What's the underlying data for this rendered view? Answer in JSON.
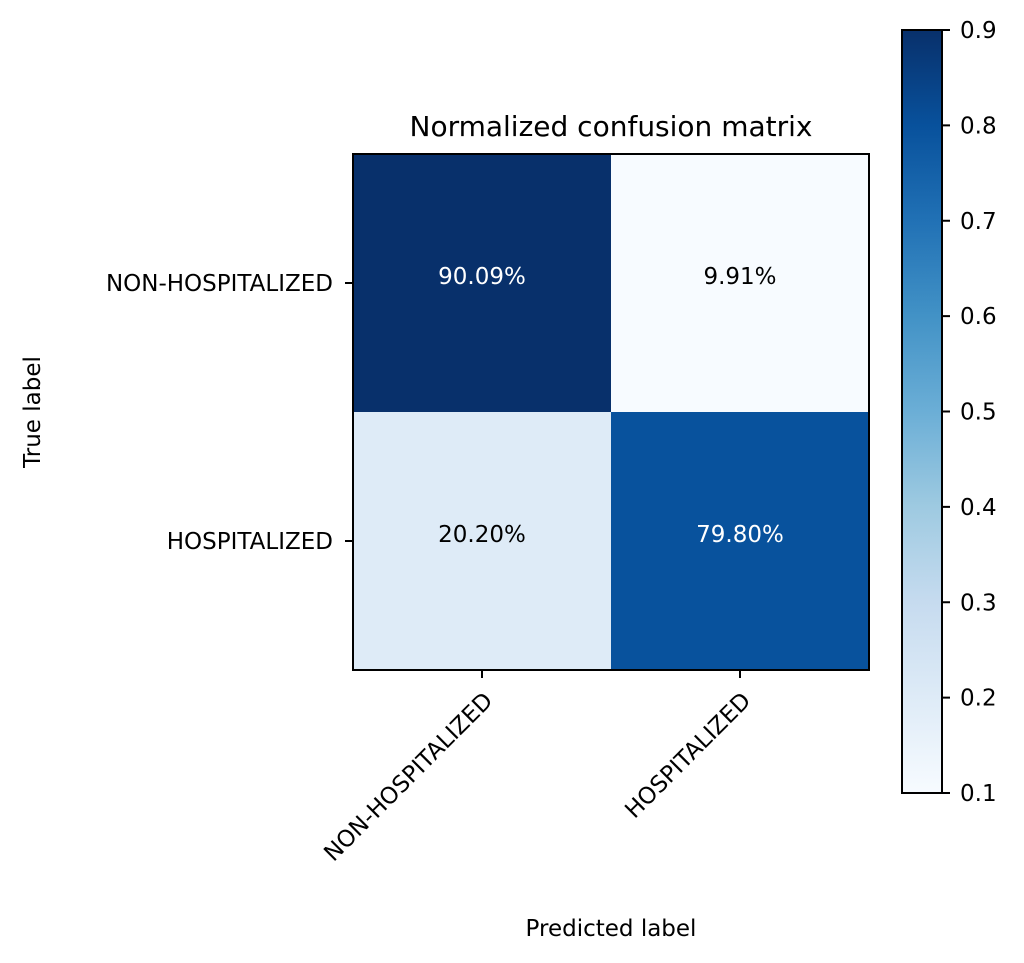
{
  "chart_data": {
    "type": "heatmap",
    "title": "Normalized confusion matrix",
    "xlabel": "Predicted label",
    "ylabel": "True label",
    "x_categories": [
      "NON-HOSPITALIZED",
      "HOSPITALIZED"
    ],
    "y_categories": [
      "NON-HOSPITALIZED",
      "HOSPITALIZED"
    ],
    "values": [
      [
        0.9009,
        0.0991
      ],
      [
        0.202,
        0.798
      ]
    ],
    "cell_labels": [
      [
        "90.09%",
        "9.91%"
      ],
      [
        "20.20%",
        "79.80%"
      ]
    ],
    "colorscale": "Blues",
    "colorbar": {
      "range": [
        0.1,
        0.9
      ],
      "ticks": [
        0.1,
        0.2,
        0.3,
        0.4,
        0.5,
        0.6,
        0.7,
        0.8,
        0.9
      ],
      "tick_labels": [
        "0.1",
        "0.2",
        "0.3",
        "0.4",
        "0.5",
        "0.6",
        "0.7",
        "0.8",
        "0.9"
      ]
    },
    "x_tick_rotation": 45
  }
}
